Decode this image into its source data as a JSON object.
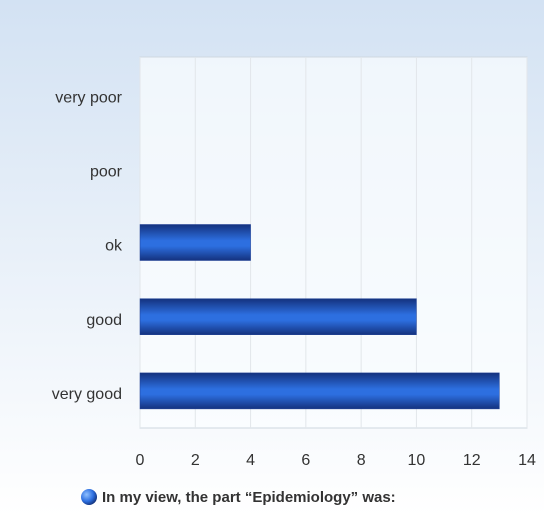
{
  "chart_data": {
    "type": "bar",
    "categories": [
      "very poor",
      "poor",
      "ok",
      "good",
      "very good"
    ],
    "series": [
      {
        "name": "In my view, the part “Epidemiology” was:",
        "color": "#2d6fe0",
        "values": [
          0,
          0,
          4,
          10,
          13
        ]
      }
    ],
    "xlim": [
      0,
      14
    ],
    "xticks": [
      0,
      2,
      4,
      6,
      8,
      10,
      12,
      14
    ],
    "grid": true,
    "legend": "bottom"
  }
}
